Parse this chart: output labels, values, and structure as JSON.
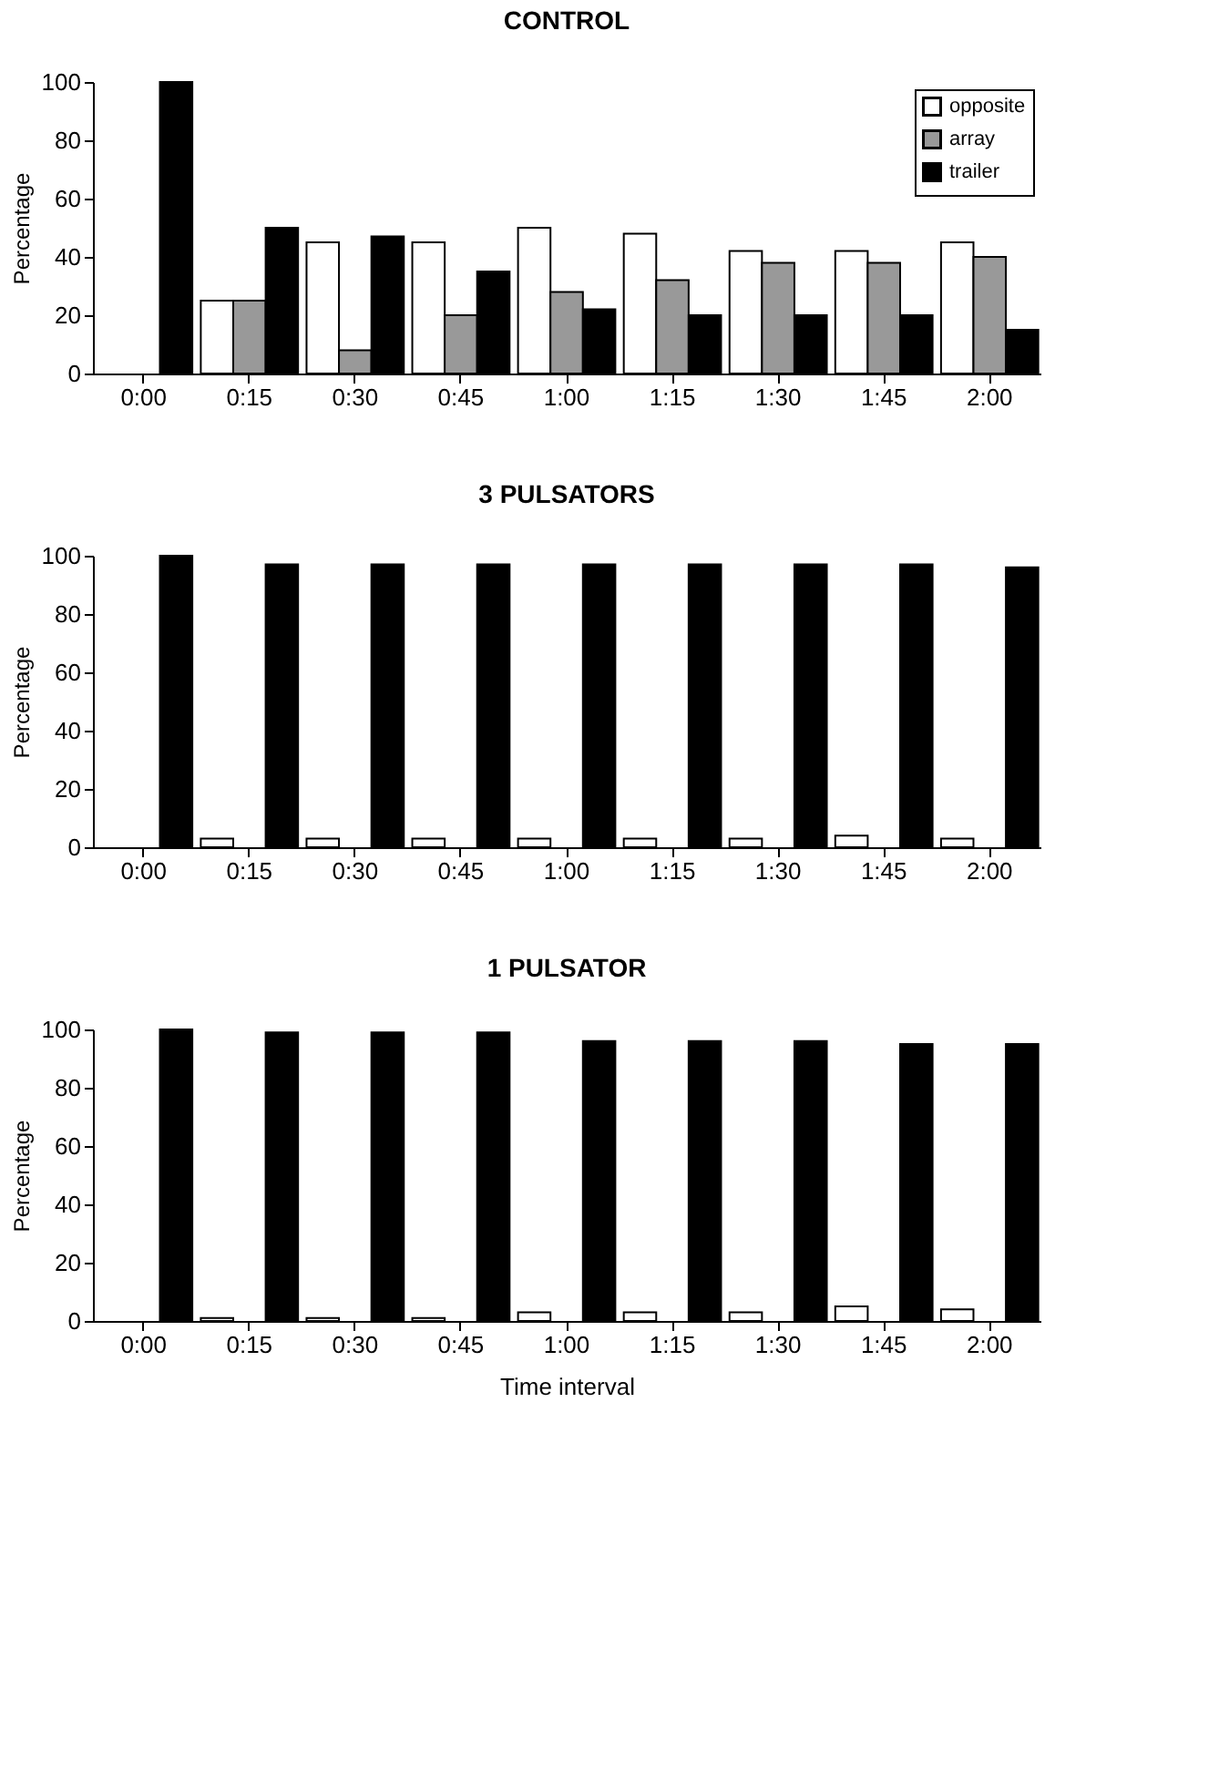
{
  "chart_data": [
    {
      "type": "bar",
      "title": "CONTROL",
      "ylabel": "Percentage",
      "categories": [
        "0:00",
        "0:15",
        "0:30",
        "0:45",
        "1:00",
        "1:15",
        "1:30",
        "1:45",
        "2:00"
      ],
      "series": [
        {
          "name": "opposite",
          "color": "#ffffff",
          "values": [
            null,
            25,
            45,
            45,
            50,
            48,
            42,
            42,
            45
          ]
        },
        {
          "name": "array",
          "color": "#999999",
          "values": [
            null,
            25,
            8,
            20,
            28,
            32,
            38,
            38,
            40
          ]
        },
        {
          "name": "trailer",
          "color": "#000000",
          "values": [
            100,
            50,
            47,
            35,
            22,
            20,
            20,
            20,
            15
          ]
        }
      ],
      "ylim": [
        0,
        100
      ],
      "yticks": [
        0,
        20,
        40,
        60,
        80,
        100
      ],
      "grid": false,
      "legend": "top right"
    },
    {
      "type": "bar",
      "title": "3 PULSATORS",
      "ylabel": "Percentage",
      "categories": [
        "0:00",
        "0:15",
        "0:30",
        "0:45",
        "1:00",
        "1:15",
        "1:30",
        "1:45",
        "2:00"
      ],
      "series": [
        {
          "color": "#ffffff",
          "values": [
            null,
            3,
            3,
            3,
            3,
            3,
            3,
            4,
            3
          ]
        },
        {
          "color": "#999999",
          "values": [
            null,
            null,
            null,
            null,
            null,
            null,
            null,
            null,
            null
          ]
        },
        {
          "color": "#000000",
          "values": [
            100,
            97,
            97,
            97,
            97,
            97,
            97,
            97,
            96
          ]
        }
      ],
      "ylim": [
        0,
        100
      ],
      "yticks": [
        0,
        20,
        40,
        60,
        80,
        100
      ],
      "grid": false,
      "legend": false
    },
    {
      "type": "bar",
      "title": "1 PULSATOR",
      "ylabel": "Percentage",
      "xlabel": "Time interval",
      "categories": [
        "0:00",
        "0:15",
        "0:30",
        "0:45",
        "1:00",
        "1:15",
        "1:30",
        "1:45",
        "2:00"
      ],
      "series": [
        {
          "color": "#ffffff",
          "values": [
            null,
            1,
            1,
            1,
            3,
            3,
            3,
            5,
            4
          ]
        },
        {
          "color": "#999999",
          "values": [
            null,
            null,
            null,
            null,
            null,
            null,
            null,
            null,
            null
          ]
        },
        {
          "color": "#000000",
          "values": [
            100,
            99,
            99,
            99,
            96,
            96,
            96,
            95,
            95
          ]
        }
      ],
      "ylim": [
        0,
        100
      ],
      "yticks": [
        0,
        20,
        40,
        60,
        80,
        100
      ],
      "grid": false,
      "legend": false
    }
  ]
}
